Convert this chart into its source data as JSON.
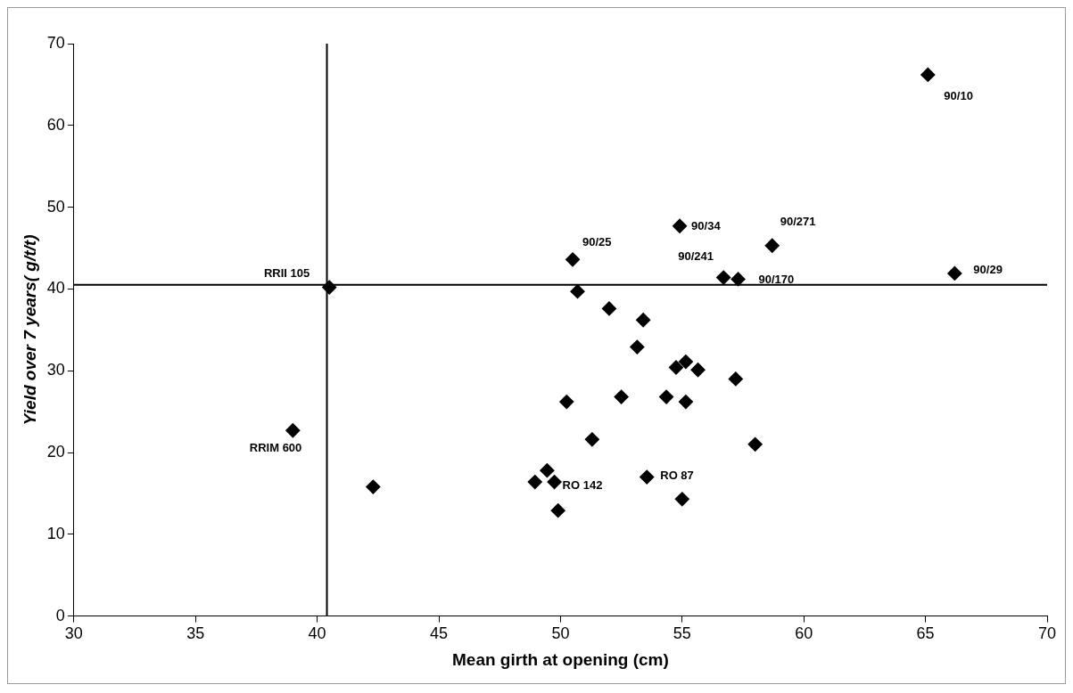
{
  "chart_data": {
    "type": "scatter",
    "xlabel": "Mean girth at opening (cm)",
    "ylabel": "Yield over 7 years( g/t/t)",
    "x": [
      40.5,
      39.0,
      65.1,
      50.5,
      54.9,
      58.7,
      56.7,
      57.3,
      66.2,
      49.75,
      53.55,
      50.7,
      52.0,
      53.4,
      53.15,
      54.75,
      55.15,
      55.65,
      57.2,
      50.25,
      52.5,
      54.35,
      55.15,
      51.3,
      58.0,
      55.0,
      49.9,
      42.3,
      49.45,
      48.95
    ],
    "series": [
      {
        "color": "#000000",
        "values": [
          40.2,
          22.7,
          66.2,
          43.6,
          47.7,
          45.3,
          41.4,
          41.2,
          41.9,
          16.4,
          17.0,
          39.7,
          37.6,
          36.2,
          32.9,
          30.4,
          31.1,
          30.1,
          29.0,
          26.2,
          26.8,
          26.8,
          26.2,
          21.6,
          21.0,
          14.3,
          12.9,
          15.8,
          17.8,
          16.4
        ]
      }
    ],
    "xlim": [
      30,
      70
    ],
    "xticks": [
      30,
      35,
      40,
      45,
      50,
      55,
      60,
      65,
      70
    ],
    "ylim": [
      0,
      70
    ],
    "yticks": [
      0,
      10,
      20,
      30,
      40,
      50,
      60,
      70
    ],
    "marker": "diamond",
    "grid": false,
    "legend": false,
    "ref_lines": [
      {
        "axis": "x",
        "value": 40.4,
        "color": "#000000"
      },
      {
        "axis": "y",
        "value": 40.5,
        "color": "#000000"
      }
    ],
    "annotations": [
      {
        "text": "RRII 105",
        "x": 40.5,
        "y": 40.2
      },
      {
        "text": "RRIM 600",
        "x": 39.0,
        "y": 22.7
      },
      {
        "text": "90/10",
        "x": 65.1,
        "y": 66.2
      },
      {
        "text": "90/25",
        "x": 50.5,
        "y": 43.6
      },
      {
        "text": "90/34",
        "x": 54.9,
        "y": 47.7
      },
      {
        "text": "90/271",
        "x": 58.7,
        "y": 45.3
      },
      {
        "text": "90/241",
        "x": 56.7,
        "y": 41.4
      },
      {
        "text": "90/170",
        "x": 57.3,
        "y": 41.2
      },
      {
        "text": "90/29",
        "x": 66.2,
        "y": 41.9
      },
      {
        "text": "RO 142",
        "x": 49.75,
        "y": 16.4
      },
      {
        "text": "RO 87",
        "x": 53.55,
        "y": 17.0
      }
    ]
  }
}
